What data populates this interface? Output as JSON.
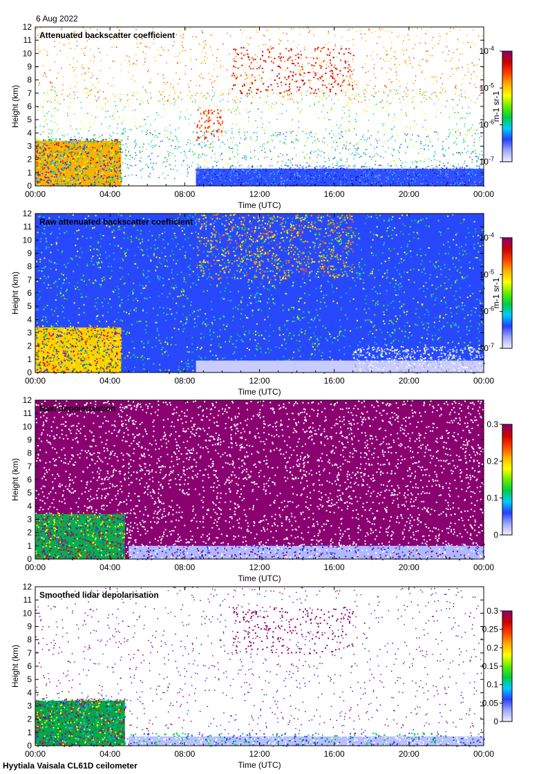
{
  "date_label": "6 Aug 2022",
  "footer": "Hyytiala Vaisala CL61D ceilometer",
  "colors": {
    "scale": [
      "#f0f0ff",
      "#a0a8ff",
      "#2840ff",
      "#00ccff",
      "#00cc44",
      "#66ee00",
      "#ffff00",
      "#ffb000",
      "#ff4000",
      "#cc0000",
      "#8a0070"
    ]
  },
  "chart_data": [
    {
      "type": "heatmap",
      "title": "Attenuated backscatter coefficient",
      "xlabel": "Time (UTC)",
      "ylabel": "Height (km)",
      "x_ticks": [
        "00:00",
        "04:00",
        "08:00",
        "12:00",
        "16:00",
        "20:00",
        "00:00"
      ],
      "y_ticks": [
        "0",
        "1",
        "2",
        "3",
        "4",
        "5",
        "6",
        "7",
        "8",
        "9",
        "10",
        "11",
        "12"
      ],
      "xlim": [
        0,
        24
      ],
      "ylim": [
        0,
        12
      ],
      "colorbar": {
        "scale": "log",
        "range": [
          1e-07,
          0.0001
        ],
        "tick_labels": [
          "10-7",
          "10-6",
          "10-5",
          "10-4"
        ],
        "unit": "m-1 sr-1"
      }
    },
    {
      "type": "heatmap",
      "title": "Raw attenuated backscatter coefficient",
      "xlabel": "Time (UTC)",
      "ylabel": "Height (km)",
      "x_ticks": [
        "00:00",
        "04:00",
        "08:00",
        "12:00",
        "16:00",
        "20:00",
        "00:00"
      ],
      "y_ticks": [
        "0",
        "1",
        "2",
        "3",
        "4",
        "5",
        "6",
        "7",
        "8",
        "9",
        "10",
        "11",
        "12"
      ],
      "xlim": [
        0,
        24
      ],
      "ylim": [
        0,
        12
      ],
      "colorbar": {
        "scale": "log",
        "range": [
          1e-07,
          0.0001
        ],
        "tick_labels": [
          "10-7",
          "10-6",
          "10-5",
          "10-4"
        ],
        "unit": "m-1 sr-1"
      }
    },
    {
      "type": "heatmap",
      "title": "Raw depolarisation",
      "xlabel": "Time (UTC)",
      "ylabel": "Height (km)",
      "x_ticks": [
        "00:00",
        "04:00",
        "08:00",
        "12:00",
        "16:00",
        "20:00",
        "00:00"
      ],
      "y_ticks": [
        "0",
        "1",
        "2",
        "3",
        "4",
        "5",
        "6",
        "7",
        "8",
        "9",
        "10",
        "11",
        "12"
      ],
      "xlim": [
        0,
        24
      ],
      "ylim": [
        0,
        12
      ],
      "colorbar": {
        "scale": "linear",
        "range": [
          0,
          0.3
        ],
        "tick_labels": [
          "0",
          "0.1",
          "0.2",
          "0.3"
        ],
        "unit": ""
      }
    },
    {
      "type": "heatmap",
      "title": "Smoothed lidar depolarisation",
      "xlabel": "Time (UTC)",
      "ylabel": "Height (km)",
      "x_ticks": [
        "00:00",
        "04:00",
        "08:00",
        "12:00",
        "16:00",
        "20:00",
        "00:00"
      ],
      "y_ticks": [
        "0",
        "1",
        "2",
        "3",
        "4",
        "5",
        "6",
        "7",
        "8",
        "9",
        "10",
        "11",
        "12"
      ],
      "xlim": [
        0,
        24
      ],
      "ylim": [
        0,
        12
      ],
      "colorbar": {
        "scale": "linear",
        "range": [
          0,
          0.3
        ],
        "tick_labels": [
          "0",
          "0.05",
          "0.1",
          "0.15",
          "0.2",
          "0.25",
          "0.3"
        ],
        "unit": ""
      }
    }
  ]
}
